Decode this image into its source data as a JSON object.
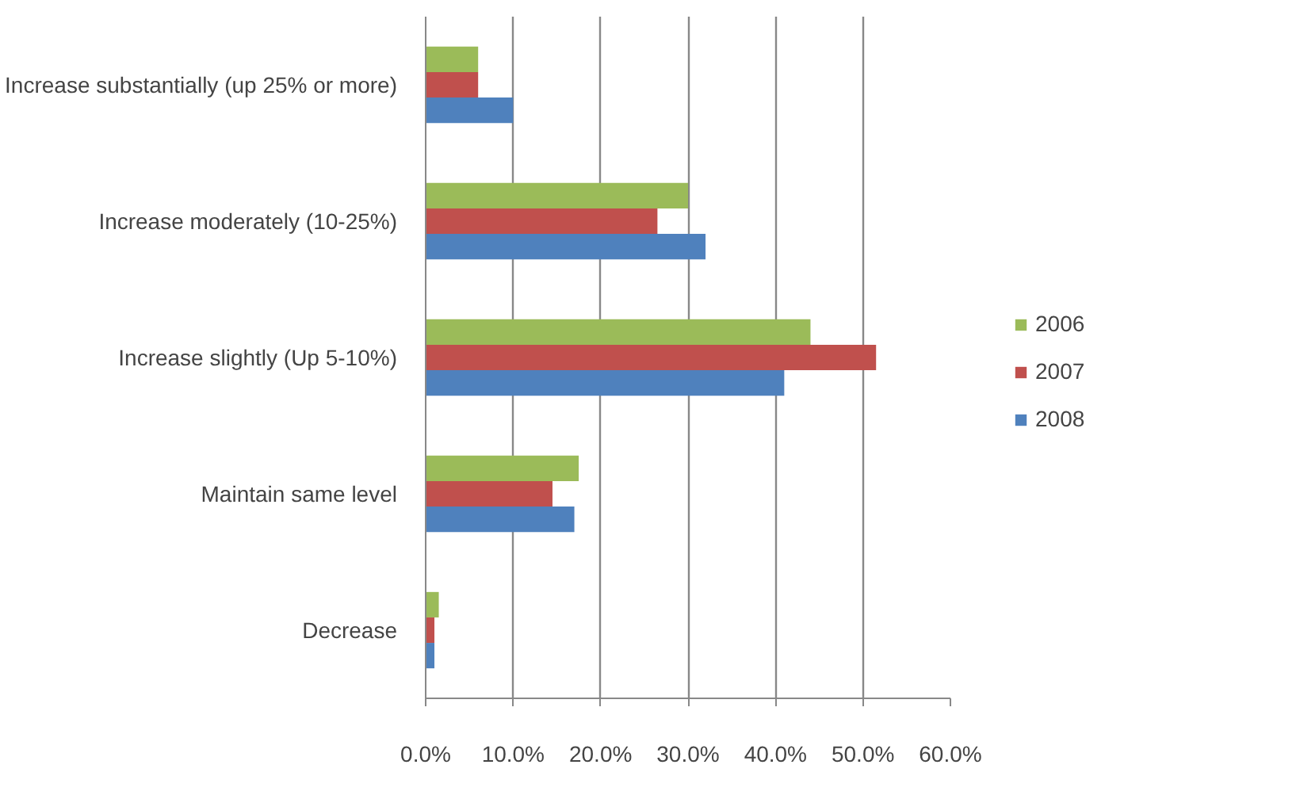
{
  "chart_data": {
    "type": "bar",
    "orientation": "horizontal",
    "categories": [
      "Increase substantially (up 25% or more)",
      "Increase moderately (10-25%)",
      "Increase slightly (Up 5-10%)",
      "Maintain same level",
      "Decrease"
    ],
    "series": [
      {
        "name": "2006",
        "color": "#9bbb59",
        "values": [
          6,
          30,
          44,
          17.5,
          1.5
        ]
      },
      {
        "name": "2007",
        "color": "#c0504d",
        "values": [
          6,
          26.5,
          51.5,
          14.5,
          1
        ]
      },
      {
        "name": "2008",
        "color": "#4f81bd",
        "values": [
          10,
          32,
          41,
          17,
          1
        ]
      }
    ],
    "xlim": [
      0,
      60
    ],
    "xticks": [
      {
        "value": 0,
        "label": "0.0%"
      },
      {
        "value": 10,
        "label": "10.0%"
      },
      {
        "value": 20,
        "label": "20.0%"
      },
      {
        "value": 30,
        "label": "30.0%"
      },
      {
        "value": 40,
        "label": "40.0%"
      },
      {
        "value": 50,
        "label": "50.0%"
      },
      {
        "value": 60,
        "label": "60.0%"
      }
    ],
    "grid": "x",
    "legend": "right"
  }
}
